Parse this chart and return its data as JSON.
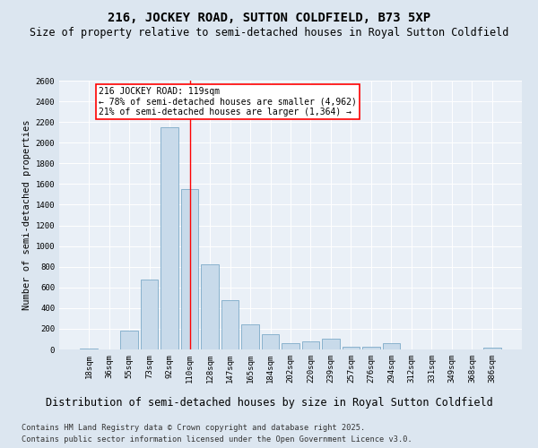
{
  "title": "216, JOCKEY ROAD, SUTTON COLDFIELD, B73 5XP",
  "subtitle": "Size of property relative to semi-detached houses in Royal Sutton Coldfield",
  "xlabel": "Distribution of semi-detached houses by size in Royal Sutton Coldfield",
  "ylabel": "Number of semi-detached properties",
  "categories": [
    "18sqm",
    "36sqm",
    "55sqm",
    "73sqm",
    "92sqm",
    "110sqm",
    "128sqm",
    "147sqm",
    "165sqm",
    "184sqm",
    "202sqm",
    "220sqm",
    "239sqm",
    "257sqm",
    "276sqm",
    "294sqm",
    "312sqm",
    "331sqm",
    "349sqm",
    "368sqm",
    "386sqm"
  ],
  "values": [
    10,
    0,
    180,
    680,
    2150,
    1550,
    820,
    480,
    240,
    150,
    60,
    80,
    100,
    30,
    30,
    60,
    0,
    0,
    0,
    0,
    20
  ],
  "bar_color": "#c8daea",
  "bar_edge_color": "#6a9ec0",
  "vline_x_index": 5,
  "vline_color": "red",
  "annotation_title": "216 JOCKEY ROAD: 119sqm",
  "annotation_line1": "← 78% of semi-detached houses are smaller (4,962)",
  "annotation_line2": "21% of semi-detached houses are larger (1,364) →",
  "ylim": [
    0,
    2600
  ],
  "yticks": [
    0,
    200,
    400,
    600,
    800,
    1000,
    1200,
    1400,
    1600,
    1800,
    2000,
    2200,
    2400,
    2600
  ],
  "footer_line1": "Contains HM Land Registry data © Crown copyright and database right 2025.",
  "footer_line2": "Contains public sector information licensed under the Open Government Licence v3.0.",
  "background_color": "#dce6f0",
  "plot_bg_color": "#eaf0f7",
  "title_fontsize": 10,
  "subtitle_fontsize": 8.5,
  "tick_fontsize": 6.5,
  "ylabel_fontsize": 7.5,
  "xlabel_fontsize": 8.5,
  "footer_fontsize": 6.2,
  "annotation_fontsize": 7
}
